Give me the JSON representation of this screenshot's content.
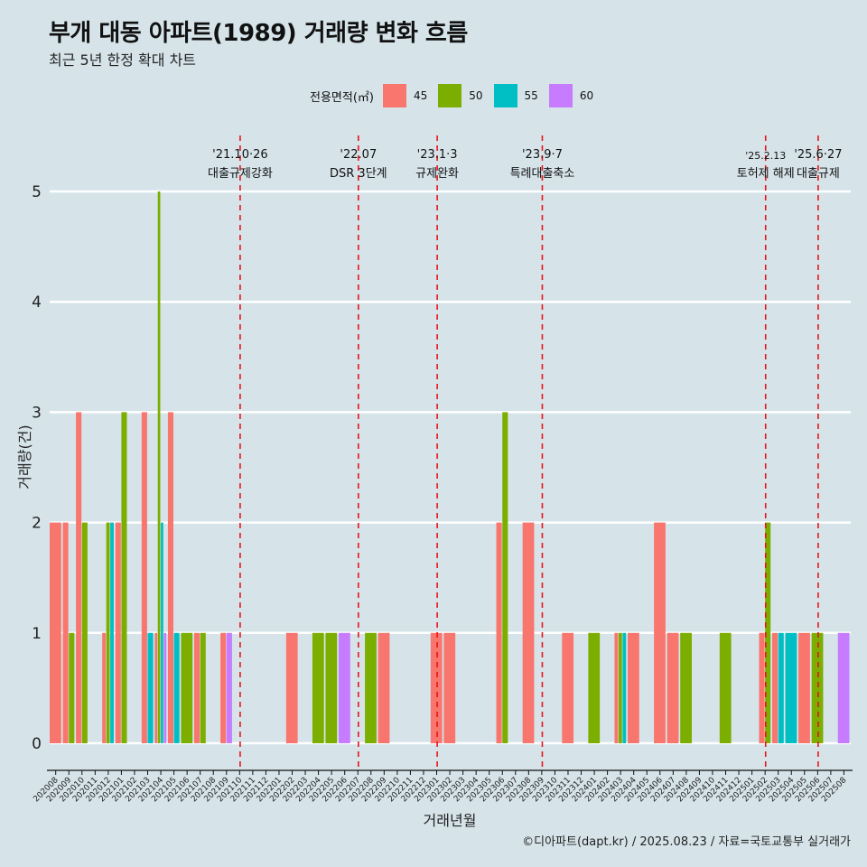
{
  "title": "부개 대동 아파트(1989) 거래량 변화 흐름",
  "subtitle": "최근 5년 한정 확대 차트",
  "legend": {
    "title": "전용면적(㎡)",
    "items": [
      {
        "label": "45",
        "color": "#f8766d"
      },
      {
        "label": "50",
        "color": "#7cae00"
      },
      {
        "label": "55",
        "color": "#00bfc4"
      },
      {
        "label": "60",
        "color": "#c77cff"
      }
    ]
  },
  "caption": "©디아파트(dapt.kr) / 2025.08.23 / 자료=국토교통부 실거래가",
  "chart_data": {
    "type": "bar",
    "xlabel": "거래년월",
    "ylabel": "거래량(건)",
    "ylim": [
      0,
      5
    ],
    "yticks": [
      0,
      1,
      2,
      3,
      4,
      5
    ],
    "grid": true,
    "legend_position": "top",
    "months": [
      "202008",
      "202009",
      "202010",
      "202011",
      "202012",
      "202101",
      "202102",
      "202103",
      "202104",
      "202105",
      "202106",
      "202107",
      "202108",
      "202109",
      "202110",
      "202111",
      "202112",
      "202201",
      "202202",
      "202203",
      "202204",
      "202205",
      "202206",
      "202207",
      "202208",
      "202209",
      "202210",
      "202211",
      "202212",
      "202301",
      "202302",
      "202303",
      "202304",
      "202305",
      "202306",
      "202307",
      "202308",
      "202309",
      "202310",
      "202311",
      "202312",
      "202401",
      "202402",
      "202403",
      "202404",
      "202405",
      "202406",
      "202407",
      "202408",
      "202409",
      "202410",
      "202411",
      "202412",
      "202501",
      "202502",
      "202503",
      "202504",
      "202505",
      "202506",
      "202507",
      "202508"
    ],
    "series": [
      {
        "name": "45",
        "color": "#f8766d",
        "values": [
          {
            "month": "202008",
            "value": 2
          },
          {
            "month": "202009",
            "value": 2
          },
          {
            "month": "202010",
            "value": 3
          },
          {
            "month": "202012",
            "value": 1
          },
          {
            "month": "202101",
            "value": 2
          },
          {
            "month": "202103",
            "value": 3
          },
          {
            "month": "202104",
            "value": 1
          },
          {
            "month": "202105",
            "value": 3
          },
          {
            "month": "202107",
            "value": 1
          },
          {
            "month": "202109",
            "value": 1
          },
          {
            "month": "202202",
            "value": 1
          },
          {
            "month": "202209",
            "value": 1
          },
          {
            "month": "202301",
            "value": 1
          },
          {
            "month": "202302",
            "value": 1
          },
          {
            "month": "202306",
            "value": 2
          },
          {
            "month": "202308",
            "value": 2
          },
          {
            "month": "202311",
            "value": 1
          },
          {
            "month": "202403",
            "value": 1
          },
          {
            "month": "202404",
            "value": 1
          },
          {
            "month": "202406",
            "value": 2
          },
          {
            "month": "202407",
            "value": 1
          },
          {
            "month": "202502",
            "value": 1
          },
          {
            "month": "202503",
            "value": 1
          },
          {
            "month": "202505",
            "value": 1
          }
        ]
      },
      {
        "name": "50",
        "color": "#7cae00",
        "values": [
          {
            "month": "202009",
            "value": 1
          },
          {
            "month": "202010",
            "value": 2
          },
          {
            "month": "202012",
            "value": 2
          },
          {
            "month": "202101",
            "value": 3
          },
          {
            "month": "202104",
            "value": 5
          },
          {
            "month": "202106",
            "value": 1
          },
          {
            "month": "202107",
            "value": 1
          },
          {
            "month": "202204",
            "value": 1
          },
          {
            "month": "202205",
            "value": 1
          },
          {
            "month": "202208",
            "value": 1
          },
          {
            "month": "202306",
            "value": 3
          },
          {
            "month": "202401",
            "value": 1
          },
          {
            "month": "202403",
            "value": 1
          },
          {
            "month": "202408",
            "value": 1
          },
          {
            "month": "202411",
            "value": 1
          },
          {
            "month": "202502",
            "value": 2
          },
          {
            "month": "202506",
            "value": 1
          }
        ]
      },
      {
        "name": "55",
        "color": "#00bfc4",
        "values": [
          {
            "month": "202012",
            "value": 2
          },
          {
            "month": "202103",
            "value": 1
          },
          {
            "month": "202104",
            "value": 2
          },
          {
            "month": "202105",
            "value": 1
          },
          {
            "month": "202403",
            "value": 1
          },
          {
            "month": "202503",
            "value": 1
          },
          {
            "month": "202504",
            "value": 1
          }
        ]
      },
      {
        "name": "60",
        "color": "#c77cff",
        "values": [
          {
            "month": "202104",
            "value": 1
          },
          {
            "month": "202109",
            "value": 1
          },
          {
            "month": "202206",
            "value": 1
          },
          {
            "month": "202508",
            "value": 1
          }
        ]
      }
    ],
    "annotations": [
      {
        "month": "202110",
        "line1": "'21.10·26",
        "line2": "대출규제강화"
      },
      {
        "month": "202207",
        "line1": "'22.07",
        "line2": "DSR 3단계"
      },
      {
        "month": "202301",
        "line1": "'23.1·3",
        "line2": "규제완화"
      },
      {
        "month": "202309",
        "line1": "'23.9·7",
        "line2": "특례대출축소"
      },
      {
        "month": "202502",
        "line1": "'25.2.13",
        "line2": "토허제 해제"
      },
      {
        "month": "202506",
        "line1": "'25.6·27",
        "line2": "대출규제"
      }
    ]
  }
}
